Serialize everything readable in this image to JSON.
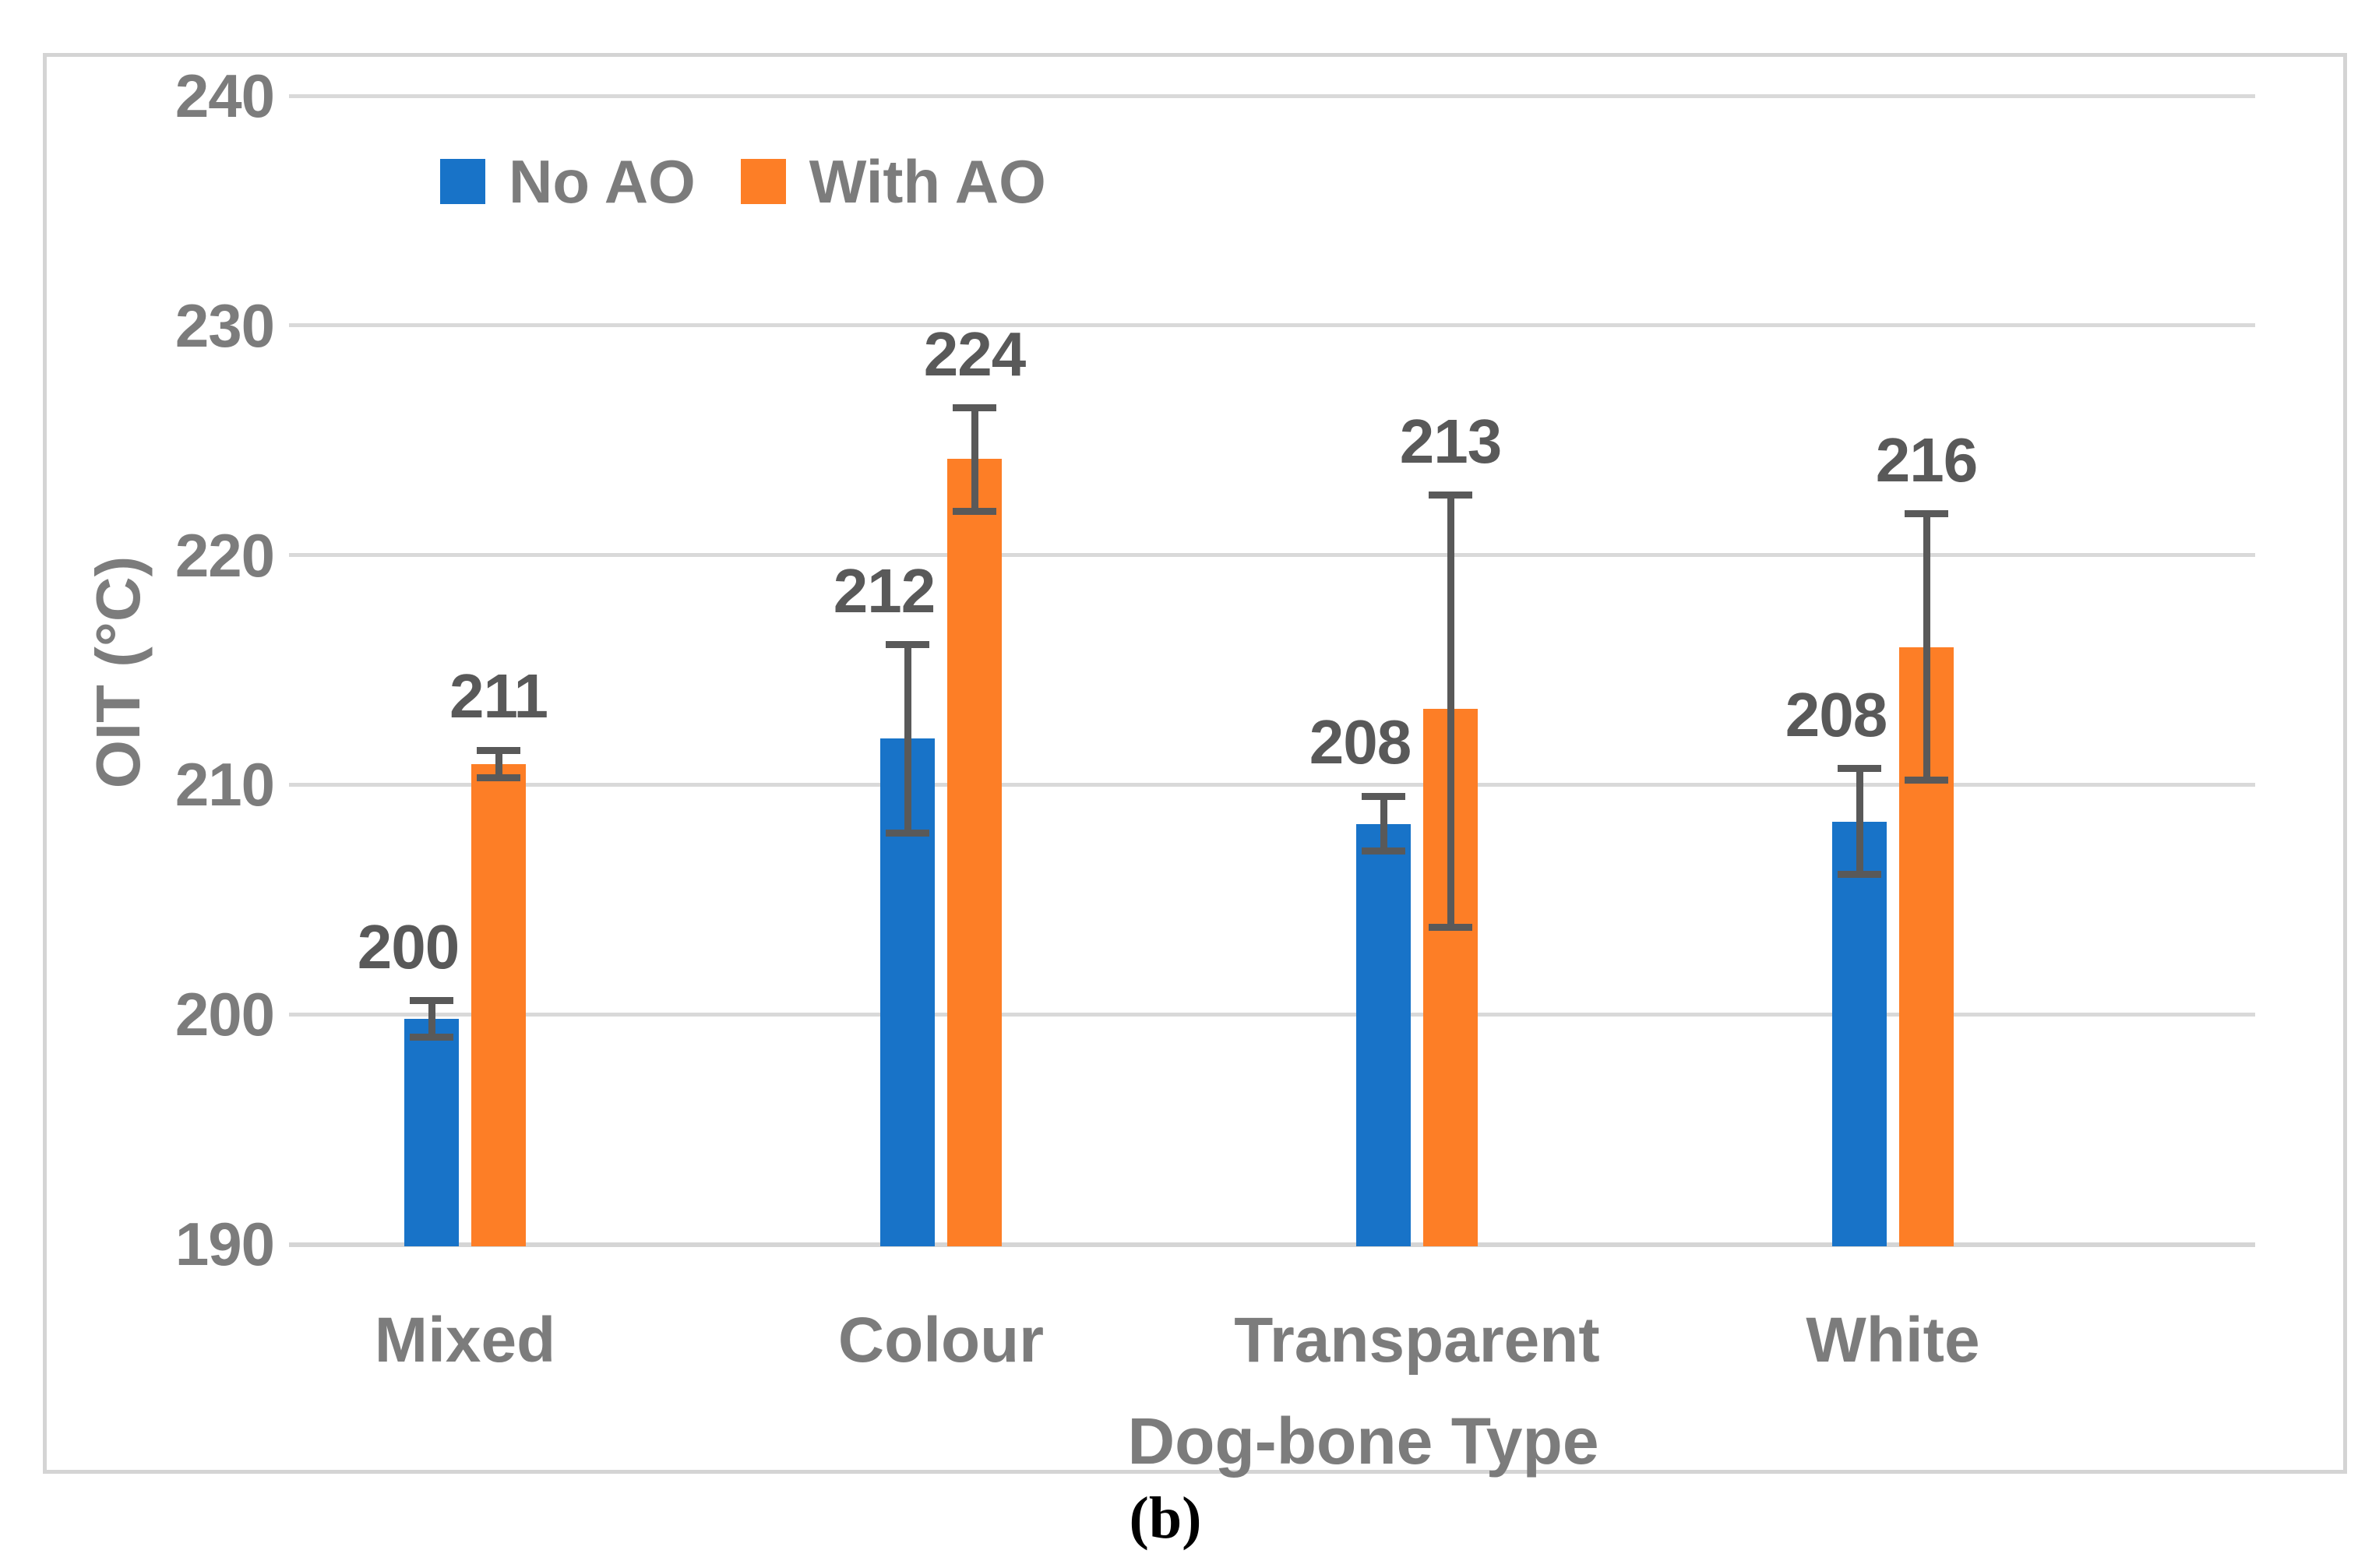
{
  "figure": {
    "caption": "(b)"
  },
  "chart_data": {
    "type": "bar",
    "title": "",
    "xlabel": "Dog-bone Type",
    "ylabel": "OIT (°C)",
    "ylim": [
      190,
      240
    ],
    "yticks": [
      190,
      200,
      210,
      220,
      230,
      240
    ],
    "grid": true,
    "legend_position": "inside-top-left",
    "categories": [
      "Mixed",
      "Colour",
      "Transparent",
      "White"
    ],
    "series": [
      {
        "name": "No AO",
        "color": "#1873c8",
        "values": [
          199.8,
          212.0,
          208.3,
          208.4
        ],
        "data_labels": [
          "200",
          "212",
          "208",
          "208"
        ],
        "error_low": [
          199.0,
          207.9,
          207.1,
          206.1
        ],
        "error_high": [
          200.6,
          216.1,
          209.5,
          210.7
        ]
      },
      {
        "name": "With AO",
        "color": "#fd7e26",
        "values": [
          210.9,
          224.2,
          213.3,
          216.0
        ],
        "data_labels": [
          "211",
          "224",
          "213",
          "216"
        ],
        "error_low": [
          210.3,
          221.9,
          203.8,
          210.2
        ],
        "error_high": [
          211.5,
          226.4,
          222.6,
          221.8
        ]
      }
    ],
    "style": {
      "gridline_color": "#d9d9d9",
      "axis_text_color": "#7c7c7c",
      "data_label_color": "#595959",
      "error_bar_color": "#595959",
      "border_color": "#d4d4d4"
    }
  }
}
